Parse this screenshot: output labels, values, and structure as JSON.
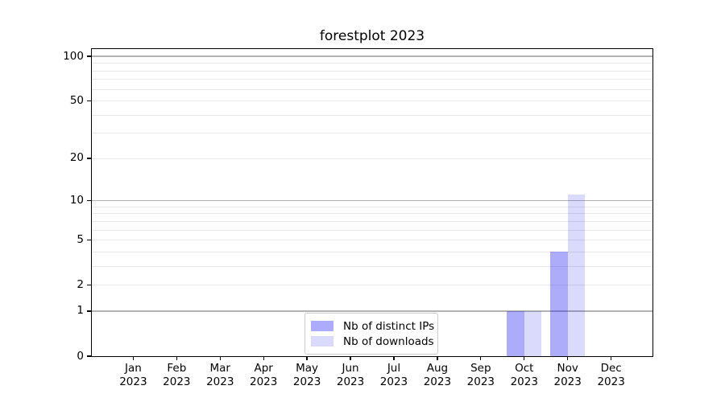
{
  "chart_data": {
    "type": "bar",
    "title": "forestplot 2023",
    "categories": [
      {
        "month": "Jan",
        "year": "2023"
      },
      {
        "month": "Feb",
        "year": "2023"
      },
      {
        "month": "Mar",
        "year": "2023"
      },
      {
        "month": "Apr",
        "year": "2023"
      },
      {
        "month": "May",
        "year": "2023"
      },
      {
        "month": "Jun",
        "year": "2023"
      },
      {
        "month": "Jul",
        "year": "2023"
      },
      {
        "month": "Aug",
        "year": "2023"
      },
      {
        "month": "Sep",
        "year": "2023"
      },
      {
        "month": "Oct",
        "year": "2023"
      },
      {
        "month": "Nov",
        "year": "2023"
      },
      {
        "month": "Dec",
        "year": "2023"
      }
    ],
    "series": [
      {
        "name": "Nb of distinct IPs",
        "color": "rgba(17,17,242,0.35)",
        "color_hex_on_white": "#acacfa",
        "values": [
          0,
          0,
          0,
          0,
          0,
          0,
          0,
          0,
          0,
          1,
          4,
          0
        ]
      },
      {
        "name": "Nb of downloads",
        "color": "rgba(17,17,242,0.155)",
        "color_hex_on_white": "#dadafd",
        "values": [
          0,
          0,
          0,
          0,
          0,
          0,
          0,
          0,
          0,
          1,
          11,
          0
        ]
      }
    ],
    "xlabel": "",
    "ylabel": "",
    "yscale": "log1p",
    "ylim": [
      0,
      110
    ],
    "y_tick_values": [
      0,
      1,
      2,
      5,
      10,
      20,
      50,
      100
    ],
    "decade_gridline_values": [
      1,
      10,
      100
    ],
    "minor_gridline_values": [
      2,
      3,
      4,
      5,
      6,
      7,
      8,
      9,
      20,
      30,
      40,
      50,
      60,
      70,
      80,
      90
    ],
    "grid": true,
    "legend_position": "bottom-center"
  },
  "colors": {
    "decade_gridline": "#b3b3b3",
    "minor_gridline": "#e8e8e8",
    "axis": "#000000",
    "legend_border": "#cccccc",
    "text": "#000000"
  }
}
